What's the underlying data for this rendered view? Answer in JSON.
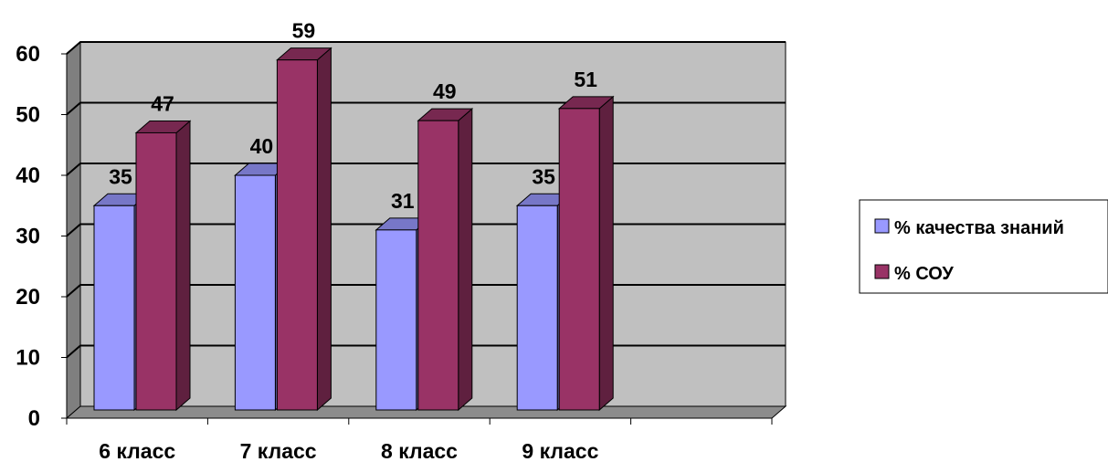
{
  "chart_data": {
    "type": "bar",
    "categories": [
      "6 класс",
      "7 класс",
      "8 класс",
      "9 класс",
      ""
    ],
    "series": [
      {
        "name": "% качества знаний",
        "values": [
          35,
          40,
          31,
          35,
          null
        ],
        "color": "#9999FF"
      },
      {
        "name": "% СОУ",
        "values": [
          47,
          59,
          49,
          51,
          null
        ],
        "color": "#993366"
      }
    ],
    "ylim": [
      0,
      60
    ],
    "yticks": [
      "0",
      "10",
      "20",
      "30",
      "40",
      "50",
      "60"
    ],
    "grid": true,
    "legend_position": "right",
    "style": "3d-clustered-column",
    "plot_background": "#C0C0C0"
  }
}
